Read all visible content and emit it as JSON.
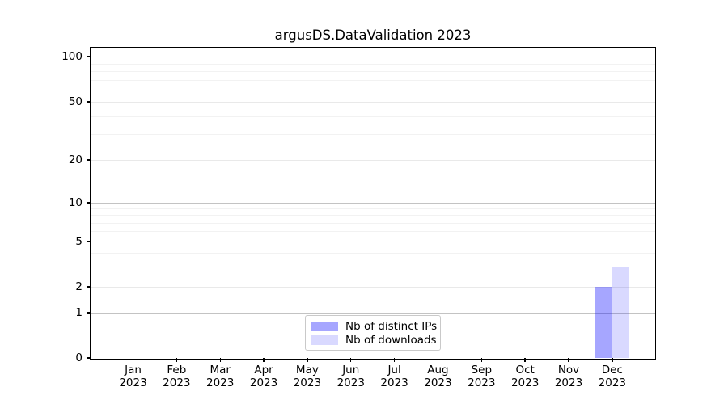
{
  "chart_data": {
    "type": "bar",
    "title": "argusDS.DataValidation 2023",
    "categories": [
      "Jan 2023",
      "Feb 2023",
      "Mar 2023",
      "Apr 2023",
      "May 2023",
      "Jun 2023",
      "Jul 2023",
      "Aug 2023",
      "Sep 2023",
      "Oct 2023",
      "Nov 2023",
      "Dec 2023"
    ],
    "series": [
      {
        "name": "Nb of distinct IPs",
        "color": "rgba(0,0,255,0.35)",
        "color_hex_on_white": "#a6a6ff",
        "values": [
          0,
          0,
          0,
          0,
          0,
          0,
          0,
          0,
          0,
          0,
          0,
          2
        ]
      },
      {
        "name": "Nb of downloads",
        "color": "rgba(0,0,255,0.15)",
        "color_hex_on_white": "#d9d9ff",
        "values": [
          0,
          0,
          0,
          0,
          0,
          0,
          0,
          0,
          0,
          0,
          0,
          3
        ]
      }
    ],
    "xlabel": "",
    "ylabel": "",
    "yscale": "symlog",
    "ylim": [
      0,
      100
    ],
    "ytick_values": [
      0,
      1,
      2,
      5,
      10,
      20,
      50,
      100
    ],
    "ytick_labels": [
      "0",
      "1",
      "2",
      "5",
      "10",
      "20",
      "50",
      "100"
    ],
    "grid": "horizontal",
    "legend_position": "lower center"
  }
}
